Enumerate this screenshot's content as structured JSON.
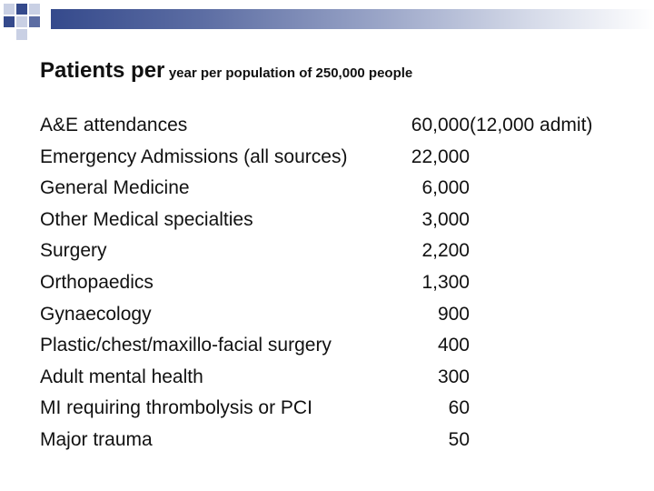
{
  "slide": {
    "title_main": "Patients per",
    "title_sub": "year per population of 250,000 people",
    "rows": [
      {
        "label": "A&E attendances",
        "value": "60,000",
        "note": "(12,000 admit)"
      },
      {
        "label": "Emergency Admissions (all sources)",
        "value": "22,000",
        "note": ""
      },
      {
        "label": "General Medicine",
        "value": "6,000",
        "note": ""
      },
      {
        "label": "Other Medical specialties",
        "value": "3,000",
        "note": ""
      },
      {
        "label": "Surgery",
        "value": "2,200",
        "note": ""
      },
      {
        "label": "Orthopaedics",
        "value": "1,300",
        "note": ""
      },
      {
        "label": "Gynaecology",
        "value": "900",
        "note": ""
      },
      {
        "label": "Plastic/chest/maxillo-facial surgery",
        "value": "400",
        "note": ""
      },
      {
        "label": "Adult mental health",
        "value": "300",
        "note": ""
      },
      {
        "label": "MI requiring thrombolysis or PCI",
        "value": "60",
        "note": ""
      },
      {
        "label": "Major trauma",
        "value": "50",
        "note": ""
      }
    ]
  },
  "theme": {
    "band_color": "#354a8c",
    "square_dark": "#354a8c",
    "square_light": "#c9d0e4"
  }
}
